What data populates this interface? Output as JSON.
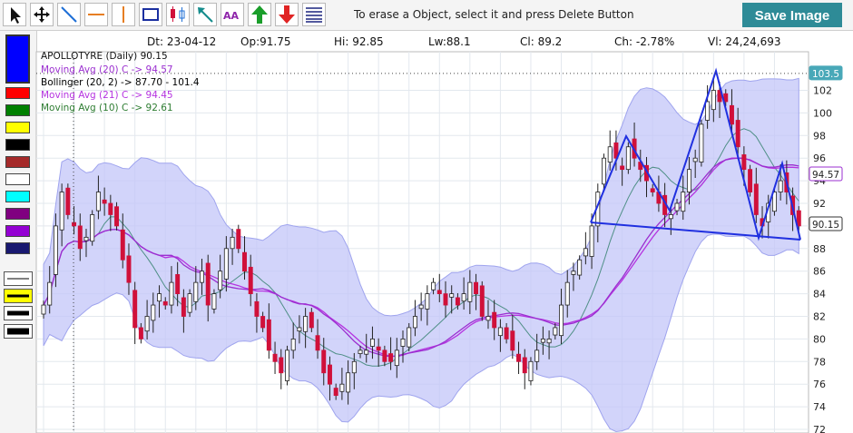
{
  "toolbar": {
    "tools": [
      {
        "icon": "pointer-arrow-icon"
      },
      {
        "icon": "move-icon"
      },
      {
        "icon": "trend-line-icon"
      },
      {
        "icon": "horizontal-line-icon"
      },
      {
        "icon": "vertical-line-icon"
      },
      {
        "icon": "rectangle-icon"
      },
      {
        "icon": "candle-marker-icon"
      },
      {
        "icon": "arrow-line-icon"
      },
      {
        "icon": "text-annotation-icon",
        "text": "AA"
      },
      {
        "icon": "buy-arrow-icon"
      },
      {
        "icon": "sell-arrow-icon"
      },
      {
        "icon": "fibonacci-icon"
      }
    ],
    "hint": "To erase a Object, select it and press Delete Button",
    "save_label": "Save Image"
  },
  "palette": {
    "colors": [
      "#0000ff",
      "#ff0000",
      "#008000",
      "#ffff00",
      "#000000",
      "#a52a2a",
      "#ffffff",
      "#00ffff",
      "#800080",
      "#9400d3",
      "#191970"
    ],
    "selected": "#0000ff",
    "line_widths": [
      1,
      3,
      5,
      7
    ]
  },
  "ohlc": {
    "date_label": "Dt:",
    "date": "23-04-12",
    "open_label": "Op:",
    "open": "91.75",
    "high_label": "Hi:",
    "high": "92.85",
    "low_label": "Lw:",
    "low": "88.1",
    "close_label": "Cl:",
    "close": "89.2",
    "change_label": "Ch:",
    "change": "-2.78%",
    "volume_label": "Vl:",
    "volume": "24,24,693"
  },
  "legend": {
    "title": "APOLLOTYRE (Daily) 90.15",
    "items": [
      {
        "text": "Moving Avg (20) C -> 94.57",
        "color": "#9b2fd0"
      },
      {
        "text": "Bollinger (20, 2) -> 87.70 - 101.4",
        "color": "#000000"
      },
      {
        "text": "Moving Avg (21) C -> 94.45",
        "color": "#b533e0"
      },
      {
        "text": "Moving Avg (10) C -> 92.61",
        "color": "#2e7d32"
      }
    ]
  },
  "chart_data": {
    "type": "candlestick",
    "symbol": "APOLLOTYRE",
    "interval": "Daily",
    "ylim": [
      72,
      104
    ],
    "yticks": [
      72,
      74,
      76,
      78,
      80,
      82,
      84,
      86,
      88,
      90,
      92,
      94,
      96,
      98,
      100,
      102
    ],
    "grid": true,
    "last_price": 90.15,
    "ma20_last": 94.57,
    "crosshair_price": 103.5,
    "colors": {
      "up": "#ffffff",
      "down": "#d0103a",
      "outline": "#222222",
      "band_fill": "#c3c6f8",
      "ma20": "#9b2fd0",
      "ma21": "#b533e0",
      "ma10": "#4f8f86",
      "pattern": "#2030e0",
      "axis_text": "#222222"
    },
    "close_series": [
      83,
      85,
      90,
      93,
      91,
      90,
      88,
      89,
      91,
      93,
      92,
      91,
      90,
      87,
      85,
      81,
      80,
      82,
      83,
      84,
      83,
      85,
      84,
      82,
      84,
      85,
      86,
      83,
      84,
      86,
      88,
      89,
      88,
      86,
      84,
      82,
      81,
      79,
      78,
      77,
      79,
      80,
      81,
      82,
      81,
      79,
      77,
      76,
      75,
      76,
      77,
      78,
      79,
      79,
      80,
      79,
      78,
      78,
      79,
      80,
      81,
      82,
      83,
      84,
      85,
      84,
      83,
      84,
      83,
      84,
      85,
      84,
      82,
      82,
      81,
      81,
      80,
      79,
      78,
      77,
      78,
      79,
      80,
      80,
      81,
      83,
      85,
      86,
      87,
      88,
      90,
      93,
      96,
      97,
      96,
      95,
      97,
      96,
      95,
      94,
      93,
      92,
      91,
      91,
      92,
      93,
      95,
      96,
      99,
      101,
      102,
      101,
      101,
      99,
      97,
      95,
      93,
      91,
      90,
      92,
      93,
      94,
      93,
      91,
      90
    ]
  }
}
